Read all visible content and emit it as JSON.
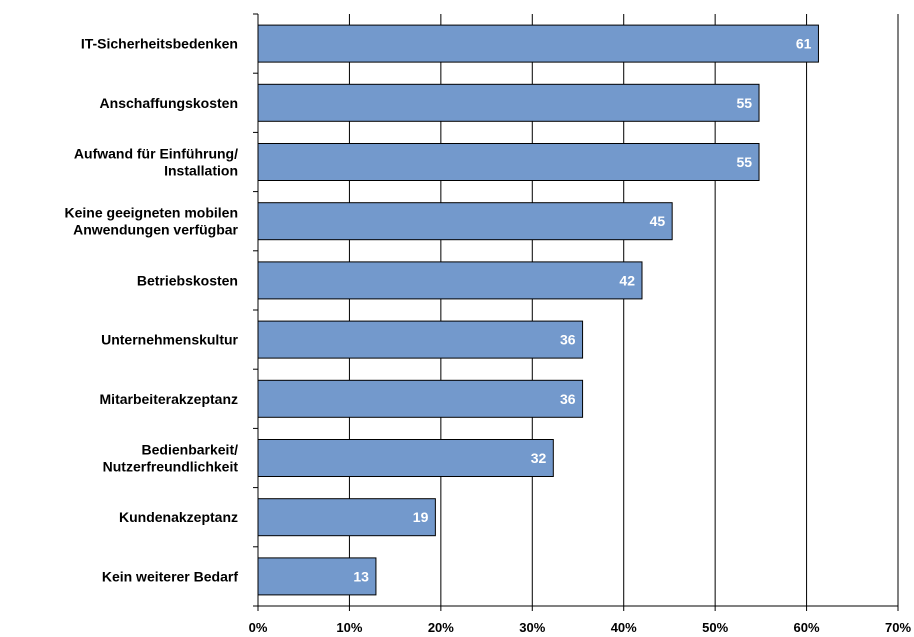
{
  "chart_data": {
    "type": "bar",
    "orientation": "horizontal",
    "categories": [
      [
        "IT-Sicherheitsbedenken"
      ],
      [
        "Anschaffungskosten"
      ],
      [
        "Aufwand für Einführung/",
        "Installation"
      ],
      [
        "Keine geeigneten mobilen",
        "Anwendungen verfügbar"
      ],
      [
        "Betriebskosten"
      ],
      [
        "Unternehmenskultur"
      ],
      [
        "Mitarbeiterakzeptanz"
      ],
      [
        "Bedienbarkeit/",
        "Nutzerfreundlichkeit"
      ],
      [
        "Kundenakzeptanz"
      ],
      [
        "Kein weiterer Bedarf"
      ]
    ],
    "values": [
      61.3,
      54.8,
      54.8,
      45.3,
      42.0,
      35.5,
      35.5,
      32.3,
      19.4,
      12.9
    ],
    "data_labels": [
      "61",
      "55",
      "55",
      "45",
      "42",
      "36",
      "36",
      "32",
      "19",
      "13"
    ],
    "x_ticks": [
      "0%",
      "10%",
      "20%",
      "30%",
      "40%",
      "50%",
      "60%",
      "70%"
    ],
    "xlim": [
      0,
      70
    ],
    "grid": "vertical",
    "colors": {
      "bar_fill": "#7399CC",
      "bar_stroke": "#000000",
      "grid": "#000000",
      "label_text": "#ffffff"
    }
  }
}
